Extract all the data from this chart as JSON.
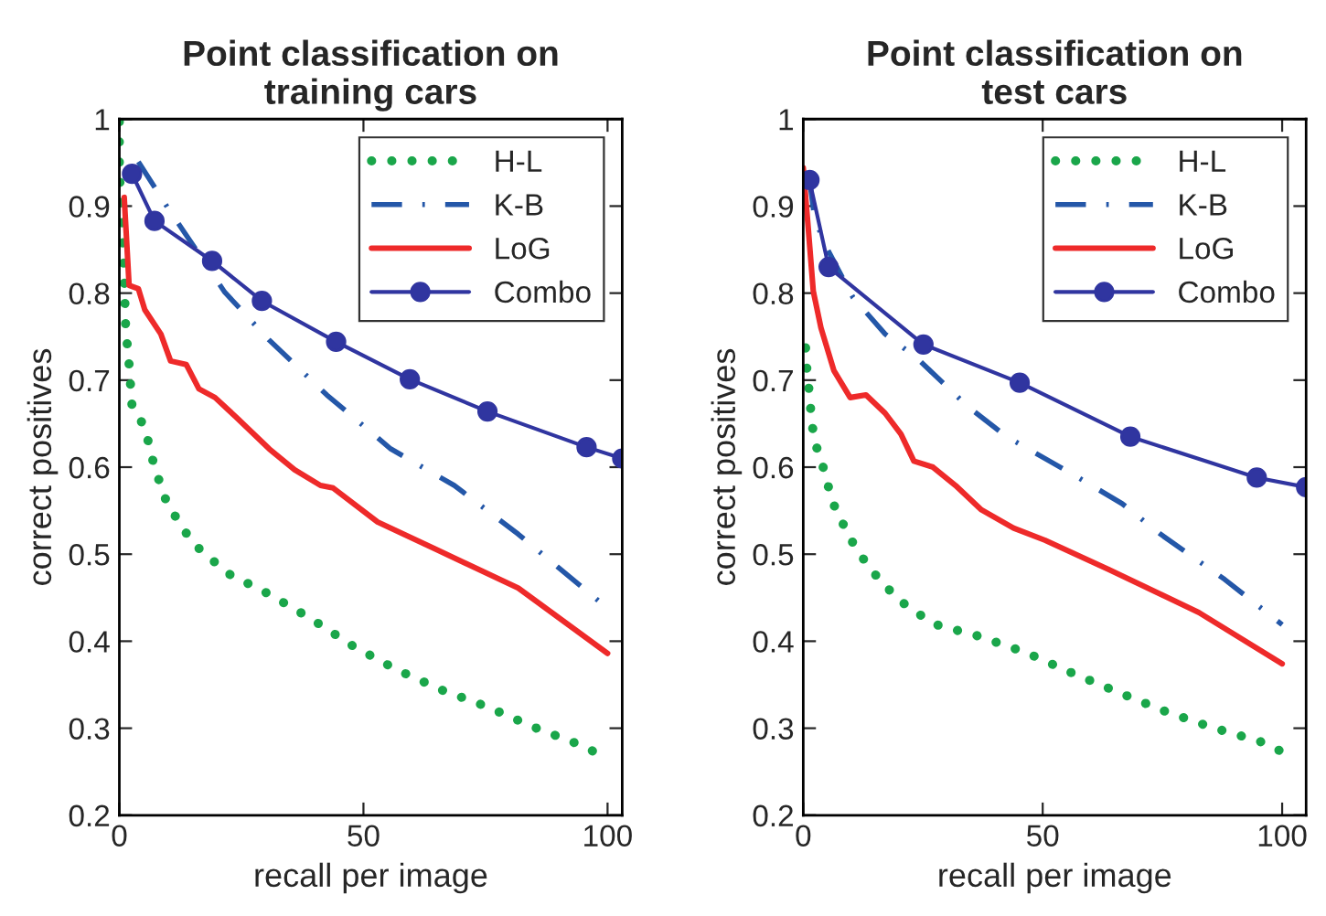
{
  "chart_data": [
    {
      "type": "line",
      "title": "Point classification on\ntraining cars",
      "xlabel": "recall per image",
      "ylabel": "correct positives",
      "xlim": [
        0,
        103
      ],
      "ylim": [
        0.2,
        1
      ],
      "xticks": [
        0,
        50,
        100
      ],
      "yticks": [
        0.2,
        0.3,
        0.4,
        0.5,
        0.6,
        0.7,
        0.8,
        0.9,
        {
          "value": 1,
          "label": "1"
        }
      ],
      "grid": false,
      "legend": "top right",
      "series": [
        {
          "name": "H-L",
          "color": "#1aa64a",
          "line_style": "dotted",
          "marker": "none",
          "x": [
            0,
            0,
            0.65,
            1.0,
            1.3,
            2.0,
            2.6,
            5.2,
            7.2,
            9.8,
            15,
            22.2,
            30.7,
            39.2,
            47.7,
            56.9,
            66,
            75.2,
            85,
            94.8,
            99.3
          ],
          "values": [
            0.997,
            0.941,
            0.871,
            0.816,
            0.76,
            0.718,
            0.67,
            0.646,
            0.6,
            0.558,
            0.513,
            0.478,
            0.454,
            0.426,
            0.395,
            0.367,
            0.344,
            0.325,
            0.301,
            0.28,
            0.267
          ]
        },
        {
          "name": "K-B",
          "color": "#2457a8",
          "line_style": "dashdot",
          "marker": "none",
          "x": [
            3.9,
            9.8,
            21.6,
            30.7,
            42.5,
            55.6,
            68.6,
            81.7,
            99.3
          ],
          "values": [
            0.951,
            0.899,
            0.801,
            0.746,
            0.683,
            0.621,
            0.579,
            0.523,
            0.441
          ]
        },
        {
          "name": "LoG",
          "color": "#ee2a2a",
          "line_style": "solid",
          "marker": "none",
          "x": [
            1.0,
            2.0,
            3.9,
            5.2,
            8.5,
            10.5,
            13.7,
            16.3,
            19.6,
            24.2,
            30.7,
            35.9,
            41.2,
            43.8,
            52.9,
            64.7,
            81.7,
            100
          ],
          "values": [
            0.91,
            0.809,
            0.805,
            0.781,
            0.753,
            0.722,
            0.718,
            0.69,
            0.68,
            0.656,
            0.621,
            0.597,
            0.579,
            0.576,
            0.537,
            0.506,
            0.461,
            0.386
          ]
        },
        {
          "name": "Combo",
          "color": "#3035a0",
          "line_style": "solid",
          "marker": "circle",
          "x": [
            2.6,
            7.2,
            19,
            29.2,
            44.4,
            59.5,
            75.4,
            95.7,
            103
          ],
          "values": [
            0.937,
            0.883,
            0.837,
            0.791,
            0.744,
            0.701,
            0.664,
            0.623,
            0.61
          ]
        }
      ]
    },
    {
      "type": "line",
      "title": "Point classification on\ntest cars",
      "xlabel": "recall per image",
      "ylabel": "correct positives",
      "xlim": [
        0,
        105
      ],
      "ylim": [
        0.2,
        1
      ],
      "xticks": [
        0,
        50,
        100
      ],
      "yticks": [
        0.2,
        0.3,
        0.4,
        0.5,
        0.6,
        0.7,
        0.8,
        0.9,
        {
          "value": 1,
          "label": "1"
        }
      ],
      "grid": false,
      "legend": "top right",
      "series": [
        {
          "name": "H-L",
          "color": "#1aa64a",
          "line_style": "dotted",
          "marker": "none",
          "x": [
            0.5,
            0.8,
            1.3,
            1.7,
            2.4,
            3.5,
            4.4,
            6.1,
            9.8,
            13.8,
            19.8,
            27.1,
            36.5,
            46.5,
            55.9,
            65.9,
            75.3,
            85.3,
            95.3,
            100
          ],
          "values": [
            0.737,
            0.709,
            0.684,
            0.656,
            0.628,
            0.613,
            0.595,
            0.56,
            0.518,
            0.484,
            0.448,
            0.42,
            0.406,
            0.387,
            0.364,
            0.341,
            0.32,
            0.301,
            0.285,
            0.273
          ]
        },
        {
          "name": "K-B",
          "color": "#2457a8",
          "line_style": "dashdot",
          "marker": "none",
          "x": [
            1.3,
            2.4,
            5.1,
            10.4,
            17.1,
            23.8,
            34.5,
            42.5,
            55.9,
            66.6,
            74.6,
            88,
            100
          ],
          "values": [
            0.93,
            0.885,
            0.85,
            0.795,
            0.753,
            0.725,
            0.669,
            0.635,
            0.593,
            0.558,
            0.523,
            0.471,
            0.419
          ]
        },
        {
          "name": "LoG",
          "color": "#ee2a2a",
          "line_style": "solid",
          "marker": "none",
          "x": [
            0,
            1.1,
            2.1,
            3.7,
            6.4,
            9.8,
            13.1,
            17.1,
            20.4,
            23.1,
            27.1,
            31.8,
            37.2,
            43.9,
            50.5,
            63.9,
            82.6,
            100
          ],
          "values": [
            0.944,
            0.871,
            0.802,
            0.76,
            0.711,
            0.68,
            0.683,
            0.662,
            0.638,
            0.607,
            0.6,
            0.579,
            0.551,
            0.53,
            0.516,
            0.482,
            0.433,
            0.374
          ]
        },
        {
          "name": "Combo",
          "color": "#3035a0",
          "line_style": "solid",
          "marker": "circle",
          "x": [
            1.3,
            5.3,
            25.1,
            45.2,
            68.3,
            94.7,
            105
          ],
          "values": [
            0.93,
            0.83,
            0.741,
            0.697,
            0.635,
            0.588,
            0.577
          ]
        }
      ]
    }
  ]
}
